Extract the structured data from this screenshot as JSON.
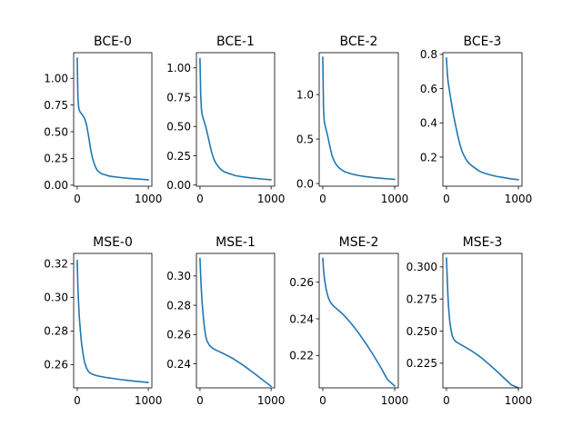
{
  "chart_data": [
    {
      "type": "line",
      "title": "BCE-0",
      "xlim": [
        -50,
        1050
      ],
      "ylim": [
        -0.01,
        1.24
      ],
      "xticks": [
        0,
        1000
      ],
      "xtick_labels": [
        "0",
        "1000"
      ],
      "yticks": [
        0.0,
        0.25,
        0.5,
        0.75,
        1.0
      ],
      "ytick_labels": [
        "0.00",
        "0.25",
        "0.50",
        "0.75",
        "1.00"
      ],
      "x": [
        0,
        10,
        20,
        30,
        45,
        60,
        80,
        100,
        130,
        160,
        190,
        220,
        250,
        280,
        310,
        350,
        400,
        450,
        500,
        600,
        700,
        800,
        900,
        1000
      ],
      "y": [
        1.19,
        0.82,
        0.73,
        0.7,
        0.68,
        0.67,
        0.65,
        0.63,
        0.57,
        0.46,
        0.33,
        0.24,
        0.18,
        0.14,
        0.12,
        0.105,
        0.095,
        0.085,
        0.08,
        0.072,
        0.065,
        0.06,
        0.055,
        0.05
      ],
      "series": [
        {
          "color": "#1f77b4"
        }
      ]
    },
    {
      "type": "line",
      "title": "BCE-1",
      "xlim": [
        -50,
        1050
      ],
      "ylim": [
        -0.01,
        1.13
      ],
      "xticks": [
        0,
        1000
      ],
      "xtick_labels": [
        "0",
        "1000"
      ],
      "yticks": [
        0.0,
        0.25,
        0.5,
        0.75,
        1.0
      ],
      "ytick_labels": [
        "0.00",
        "0.25",
        "0.50",
        "0.75",
        "1.00"
      ],
      "x": [
        0,
        10,
        20,
        30,
        45,
        60,
        80,
        100,
        130,
        160,
        190,
        220,
        260,
        300,
        350,
        400,
        450,
        500,
        600,
        700,
        800,
        900,
        1000
      ],
      "y": [
        1.08,
        0.78,
        0.65,
        0.6,
        0.57,
        0.54,
        0.5,
        0.45,
        0.37,
        0.29,
        0.23,
        0.19,
        0.155,
        0.13,
        0.11,
        0.1,
        0.09,
        0.08,
        0.07,
        0.062,
        0.056,
        0.05,
        0.045
      ],
      "series": [
        {
          "color": "#1f77b4"
        }
      ]
    },
    {
      "type": "line",
      "title": "BCE-2",
      "xlim": [
        -50,
        1050
      ],
      "ylim": [
        -0.03,
        1.47
      ],
      "xticks": [
        0,
        1000
      ],
      "xtick_labels": [
        "0",
        "1000"
      ],
      "yticks": [
        0.0,
        0.5,
        1.0
      ],
      "ytick_labels": [
        "0.0",
        "0.5",
        "1.0"
      ],
      "x": [
        0,
        10,
        20,
        30,
        45,
        60,
        80,
        100,
        130,
        160,
        190,
        220,
        260,
        300,
        350,
        400,
        450,
        500,
        600,
        700,
        800,
        900,
        1000
      ],
      "y": [
        1.42,
        0.85,
        0.7,
        0.66,
        0.61,
        0.56,
        0.49,
        0.41,
        0.31,
        0.25,
        0.21,
        0.18,
        0.155,
        0.135,
        0.12,
        0.108,
        0.098,
        0.09,
        0.078,
        0.068,
        0.06,
        0.053,
        0.047
      ],
      "series": [
        {
          "color": "#1f77b4"
        }
      ]
    },
    {
      "type": "line",
      "title": "BCE-3",
      "xlim": [
        -50,
        1050
      ],
      "ylim": [
        0.03,
        0.81
      ],
      "xticks": [
        0,
        1000
      ],
      "xtick_labels": [
        "0",
        "1000"
      ],
      "yticks": [
        0.2,
        0.4,
        0.6,
        0.8
      ],
      "ytick_labels": [
        "0.2",
        "0.4",
        "0.6",
        "0.8"
      ],
      "x": [
        0,
        10,
        20,
        30,
        45,
        60,
        80,
        100,
        130,
        160,
        190,
        220,
        260,
        300,
        350,
        400,
        450,
        500,
        600,
        700,
        800,
        900,
        1000
      ],
      "y": [
        0.78,
        0.7,
        0.65,
        0.62,
        0.58,
        0.54,
        0.49,
        0.44,
        0.38,
        0.32,
        0.27,
        0.23,
        0.195,
        0.17,
        0.15,
        0.135,
        0.12,
        0.11,
        0.097,
        0.087,
        0.08,
        0.073,
        0.068
      ],
      "series": [
        {
          "color": "#1f77b4"
        }
      ]
    },
    {
      "type": "line",
      "title": "MSE-0",
      "xlim": [
        -50,
        1050
      ],
      "ylim": [
        0.2462,
        0.3261
      ],
      "xticks": [
        0,
        1000
      ],
      "xtick_labels": [
        "0",
        "1000"
      ],
      "yticks": [
        0.26,
        0.28,
        0.3,
        0.32
      ],
      "ytick_labels": [
        "0.26",
        "0.28",
        "0.30",
        "0.32"
      ],
      "x": [
        0,
        10,
        20,
        30,
        45,
        60,
        80,
        100,
        130,
        160,
        190,
        220,
        260,
        300,
        350,
        400,
        450,
        500,
        600,
        700,
        800,
        900,
        1000
      ],
      "y": [
        0.322,
        0.306,
        0.296,
        0.288,
        0.28,
        0.273,
        0.267,
        0.262,
        0.258,
        0.2558,
        0.2548,
        0.2542,
        0.2536,
        0.2532,
        0.2528,
        0.2524,
        0.2521,
        0.2518,
        0.2512,
        0.2507,
        0.2502,
        0.2498,
        0.2494
      ],
      "series": [
        {
          "color": "#1f77b4"
        }
      ]
    },
    {
      "type": "line",
      "title": "MSE-1",
      "xlim": [
        -50,
        1050
      ],
      "ylim": [
        0.2236,
        0.3154
      ],
      "xticks": [
        0,
        1000
      ],
      "xtick_labels": [
        "0",
        "1000"
      ],
      "yticks": [
        0.24,
        0.26,
        0.28,
        0.3
      ],
      "ytick_labels": [
        "0.24",
        "0.26",
        "0.28",
        "0.30"
      ],
      "x": [
        0,
        10,
        20,
        30,
        45,
        60,
        80,
        100,
        130,
        160,
        190,
        220,
        260,
        300,
        350,
        400,
        450,
        500,
        600,
        700,
        800,
        900,
        1000
      ],
      "y": [
        0.312,
        0.3,
        0.29,
        0.282,
        0.273,
        0.266,
        0.259,
        0.2555,
        0.2528,
        0.2513,
        0.2503,
        0.2495,
        0.2486,
        0.2477,
        0.2465,
        0.2453,
        0.244,
        0.2425,
        0.2393,
        0.2358,
        0.2321,
        0.2283,
        0.2247
      ],
      "series": [
        {
          "color": "#1f77b4"
        }
      ]
    },
    {
      "type": "line",
      "title": "MSE-2",
      "xlim": [
        -50,
        1050
      ],
      "ylim": [
        0.2023,
        0.2757
      ],
      "xticks": [
        0,
        1000
      ],
      "xtick_labels": [
        "0",
        "1000"
      ],
      "yticks": [
        0.22,
        0.24,
        0.26
      ],
      "ytick_labels": [
        "0.22",
        "0.24",
        "0.26"
      ],
      "x": [
        0,
        10,
        20,
        30,
        45,
        60,
        80,
        100,
        130,
        160,
        190,
        220,
        260,
        300,
        350,
        400,
        450,
        500,
        600,
        700,
        800,
        900,
        1000
      ],
      "y": [
        0.273,
        0.267,
        0.263,
        0.26,
        0.2565,
        0.2538,
        0.2513,
        0.2495,
        0.2478,
        0.2466,
        0.2456,
        0.2446,
        0.2432,
        0.2417,
        0.2395,
        0.2372,
        0.2347,
        0.2321,
        0.2265,
        0.2204,
        0.2139,
        0.2068,
        0.2033
      ],
      "series": [
        {
          "color": "#1f77b4"
        }
      ]
    },
    {
      "type": "line",
      "title": "MSE-3",
      "xlim": [
        -50,
        1050
      ],
      "ylim": [
        0.2058,
        0.3105
      ],
      "xticks": [
        0,
        1000
      ],
      "xtick_labels": [
        "0",
        "1000"
      ],
      "yticks": [
        0.225,
        0.25,
        0.275,
        0.3
      ],
      "ytick_labels": [
        "0.225",
        "0.250",
        "0.275",
        "0.300"
      ],
      "x": [
        0,
        10,
        20,
        30,
        45,
        60,
        80,
        100,
        130,
        160,
        190,
        220,
        260,
        300,
        350,
        400,
        450,
        500,
        600,
        700,
        800,
        900,
        1000
      ],
      "y": [
        0.307,
        0.292,
        0.278,
        0.268,
        0.258,
        0.252,
        0.2465,
        0.2438,
        0.2418,
        0.2408,
        0.2398,
        0.2388,
        0.2376,
        0.2363,
        0.2346,
        0.2327,
        0.2307,
        0.2285,
        0.2238,
        0.2188,
        0.2135,
        0.2082,
        0.2058
      ],
      "series": [
        {
          "color": "#1f77b4"
        }
      ]
    }
  ]
}
